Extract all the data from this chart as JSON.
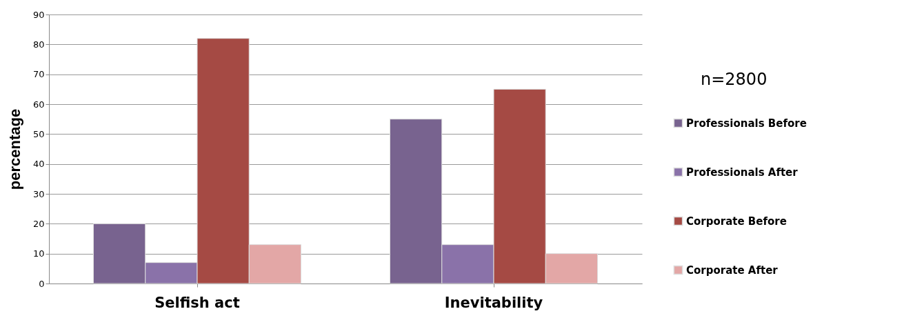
{
  "chart_data": {
    "type": "bar",
    "ylabel": "percentage",
    "categories": [
      "Selfish act",
      "Inevitability"
    ],
    "series": [
      {
        "name": "Professionals Before",
        "color": "#78638f",
        "values": [
          20,
          55
        ]
      },
      {
        "name": "Professionals After",
        "color": "#8a72a9",
        "values": [
          7,
          13
        ]
      },
      {
        "name": "Corporate Before",
        "color": "#a54a44",
        "values": [
          82,
          65
        ]
      },
      {
        "name": "Corporate After",
        "color": "#e3a7a6",
        "values": [
          13,
          10
        ]
      }
    ],
    "ylim": [
      0,
      90
    ],
    "yticks": [
      0,
      10,
      20,
      30,
      40,
      50,
      60,
      70,
      80,
      90
    ],
    "grid": "y",
    "legend": "right",
    "annotations": [
      "n=2800"
    ]
  }
}
